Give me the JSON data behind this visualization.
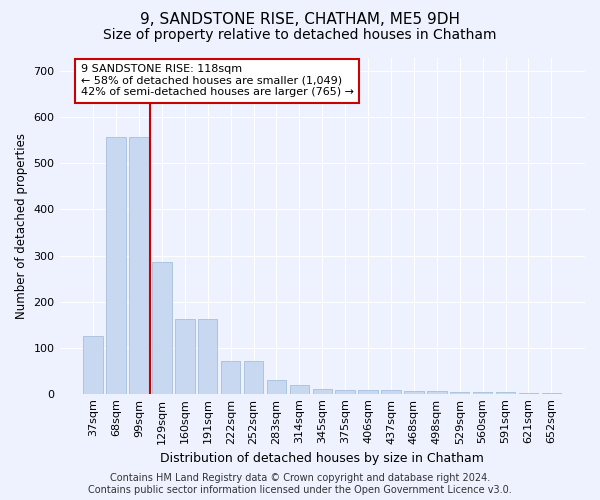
{
  "title": "9, SANDSTONE RISE, CHATHAM, ME5 9DH",
  "subtitle": "Size of property relative to detached houses in Chatham",
  "xlabel": "Distribution of detached houses by size in Chatham",
  "ylabel": "Number of detached properties",
  "categories": [
    "37sqm",
    "68sqm",
    "99sqm",
    "129sqm",
    "160sqm",
    "191sqm",
    "222sqm",
    "252sqm",
    "283sqm",
    "314sqm",
    "345sqm",
    "375sqm",
    "406sqm",
    "437sqm",
    "468sqm",
    "498sqm",
    "529sqm",
    "560sqm",
    "591sqm",
    "621sqm",
    "652sqm"
  ],
  "values": [
    125,
    558,
    558,
    285,
    163,
    163,
    70,
    70,
    30,
    18,
    10,
    8,
    8,
    7,
    5,
    5,
    4,
    3,
    3,
    2,
    2
  ],
  "bar_color": "#c8d8f0",
  "bar_edge_color": "#9ab8d8",
  "vline_x_index": 2,
  "vline_color": "#cc0000",
  "annotation_text": "9 SANDSTONE RISE: 118sqm\n← 58% of detached houses are smaller (1,049)\n42% of semi-detached houses are larger (765) →",
  "annotation_box_color": "#ffffff",
  "annotation_box_edge": "#cc0000",
  "ylim": [
    0,
    730
  ],
  "yticks": [
    0,
    100,
    200,
    300,
    400,
    500,
    600,
    700
  ],
  "footer_line1": "Contains HM Land Registry data © Crown copyright and database right 2024.",
  "footer_line2": "Contains public sector information licensed under the Open Government Licence v3.0.",
  "background_color": "#eef2ff",
  "grid_color": "#ffffff",
  "title_fontsize": 11,
  "subtitle_fontsize": 10,
  "tick_fontsize": 8,
  "footer_fontsize": 7
}
